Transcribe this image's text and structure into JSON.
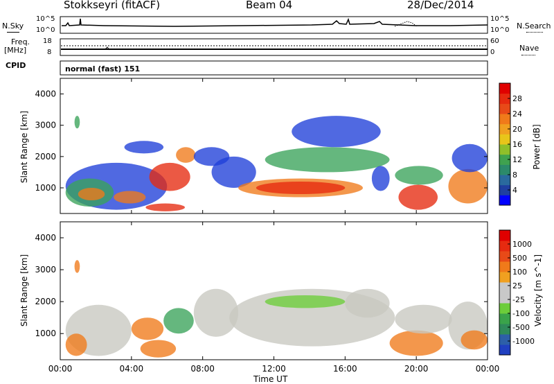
{
  "header": {
    "station": "Stokkseyri (fitACF)",
    "beam": "Beam 04",
    "date": "28/Dec/2014"
  },
  "strip_panels": {
    "nsky_label": "N.Sky",
    "nsearch_label": "N.Search",
    "noise_ticks_left": [
      "10^5",
      "10^0"
    ],
    "noise_ticks_right": [
      "10^5",
      "10^0"
    ],
    "freq_label_line1": "Freq.",
    "freq_label_line2": "[MHz]",
    "freq_ticks": [
      "18",
      "8"
    ],
    "nave_ticks": [
      "60",
      "0"
    ],
    "nave_label": "Nave",
    "cpid_label": "CPID",
    "cpid_text": "normal (fast) 151"
  },
  "axes": {
    "y_label": "Slant Range [km]",
    "x_label": "Time UT",
    "x_ticks": [
      "00:00",
      "04:00",
      "08:00",
      "12:00",
      "16:00",
      "20:00",
      "00:00"
    ],
    "y_ticks": [
      "1000",
      "2000",
      "3000",
      "4000"
    ]
  },
  "power_colorbar": {
    "label": "Power [dB]",
    "ticks": [
      "28",
      "24",
      "20",
      "16",
      "12",
      "8",
      "4"
    ]
  },
  "velocity_colorbar": {
    "label": "Velocity [m s^-1]",
    "ticks": [
      "1000",
      "500",
      "100",
      "25",
      "-25",
      "-100",
      "-500",
      "-1000"
    ]
  },
  "chart_data": {
    "type": "heatmap",
    "title": "Stokkseyri (fitACF)  Beam 04  28/Dec/2014",
    "xlabel": "Time UT",
    "ylabel": "Slant Range [km]",
    "xlim_hours": [
      0,
      24
    ],
    "ylim_km": [
      180,
      4500
    ],
    "colors": {
      "blue": "#1f3fd8",
      "green": "#3aa35a",
      "yellow": "#e8c51a",
      "orange": "#f07a1a",
      "red": "#e62a10",
      "grey": "#c8c8c0",
      "lightgreen": "#6ccd3a"
    },
    "power_colorbar_colors": [
      "#0000ff",
      "#1f3fa0",
      "#2a6a9e",
      "#2c8a6a",
      "#3fa24f",
      "#8fbf2a",
      "#e8c51a",
      "#f0a020",
      "#f07a1a",
      "#e84a18",
      "#e62a10",
      "#e00000"
    ],
    "velocity_colorbar_colors": [
      "#2040c0",
      "#2d5fa8",
      "#2f8a5a",
      "#3aa34a",
      "#6ccd3a",
      "#c8c8c8",
      "#c8c8c8",
      "#f0a020",
      "#f07a1a",
      "#e84a18",
      "#e62a10",
      "#e00000"
    ],
    "power_blobs": [
      {
        "t0": 0.3,
        "t1": 6.0,
        "r0": 300,
        "r1": 1800,
        "c": "blue"
      },
      {
        "t0": 0.3,
        "t1": 3.0,
        "r0": 400,
        "r1": 1300,
        "c": "green"
      },
      {
        "t0": 1.0,
        "t1": 2.5,
        "r0": 600,
        "r1": 1000,
        "c": "orange"
      },
      {
        "t0": 3.0,
        "t1": 4.8,
        "r0": 500,
        "r1": 900,
        "c": "orange"
      },
      {
        "t0": 5.0,
        "t1": 7.3,
        "r0": 900,
        "r1": 1800,
        "c": "red"
      },
      {
        "t0": 4.8,
        "t1": 7.0,
        "r0": 250,
        "r1": 500,
        "c": "red"
      },
      {
        "t0": 6.5,
        "t1": 7.6,
        "r0": 1800,
        "r1": 2300,
        "c": "orange"
      },
      {
        "t0": 3.6,
        "t1": 5.8,
        "r0": 2100,
        "r1": 2500,
        "c": "blue"
      },
      {
        "t0": 7.5,
        "t1": 9.5,
        "r0": 1700,
        "r1": 2300,
        "c": "blue"
      },
      {
        "t0": 8.5,
        "t1": 11.0,
        "r0": 1000,
        "r1": 2000,
        "c": "blue"
      },
      {
        "t0": 10.0,
        "t1": 17.0,
        "r0": 700,
        "r1": 1300,
        "c": "orange"
      },
      {
        "t0": 11.0,
        "t1": 16.0,
        "r0": 800,
        "r1": 1200,
        "c": "red"
      },
      {
        "t0": 11.5,
        "t1": 18.5,
        "r0": 1500,
        "r1": 2300,
        "c": "green"
      },
      {
        "t0": 13.0,
        "t1": 18.0,
        "r0": 2300,
        "r1": 3300,
        "c": "blue"
      },
      {
        "t0": 17.5,
        "t1": 18.5,
        "r0": 900,
        "r1": 1700,
        "c": "blue"
      },
      {
        "t0": 19.0,
        "t1": 21.2,
        "r0": 300,
        "r1": 1100,
        "c": "red"
      },
      {
        "t0": 18.8,
        "t1": 21.5,
        "r0": 1100,
        "r1": 1700,
        "c": "green"
      },
      {
        "t0": 21.8,
        "t1": 24.0,
        "r0": 500,
        "r1": 1600,
        "c": "orange"
      },
      {
        "t0": 22.0,
        "t1": 24.0,
        "r0": 1500,
        "r1": 2400,
        "c": "blue"
      },
      {
        "t0": 0.8,
        "t1": 1.1,
        "r0": 2900,
        "r1": 3300,
        "c": "green"
      }
    ],
    "velocity_blobs": [
      {
        "t0": 0.3,
        "t1": 4.0,
        "r0": 300,
        "r1": 1900,
        "c": "grey"
      },
      {
        "t0": 0.3,
        "t1": 1.5,
        "r0": 300,
        "r1": 1000,
        "c": "orange"
      },
      {
        "t0": 4.0,
        "t1": 5.8,
        "r0": 800,
        "r1": 1500,
        "c": "orange"
      },
      {
        "t0": 4.5,
        "t1": 6.5,
        "r0": 250,
        "r1": 800,
        "c": "orange"
      },
      {
        "t0": 5.8,
        "t1": 7.5,
        "r0": 1000,
        "r1": 1800,
        "c": "green"
      },
      {
        "t0": 7.5,
        "t1": 10.0,
        "r0": 900,
        "r1": 2400,
        "c": "grey"
      },
      {
        "t0": 9.5,
        "t1": 18.8,
        "r0": 600,
        "r1": 2400,
        "c": "grey"
      },
      {
        "t0": 11.5,
        "t1": 16.0,
        "r0": 1800,
        "r1": 2200,
        "c": "lightgreen"
      },
      {
        "t0": 16.0,
        "t1": 18.5,
        "r0": 1500,
        "r1": 2400,
        "c": "grey"
      },
      {
        "t0": 18.5,
        "t1": 21.5,
        "r0": 300,
        "r1": 1100,
        "c": "orange"
      },
      {
        "t0": 18.8,
        "t1": 22.0,
        "r0": 1000,
        "r1": 1900,
        "c": "grey"
      },
      {
        "t0": 21.8,
        "t1": 24.0,
        "r0": 500,
        "r1": 2000,
        "c": "grey"
      },
      {
        "t0": 22.5,
        "t1": 24.0,
        "r0": 500,
        "r1": 1100,
        "c": "orange"
      },
      {
        "t0": 0.8,
        "t1": 1.1,
        "r0": 2900,
        "r1": 3300,
        "c": "orange"
      }
    ]
  }
}
